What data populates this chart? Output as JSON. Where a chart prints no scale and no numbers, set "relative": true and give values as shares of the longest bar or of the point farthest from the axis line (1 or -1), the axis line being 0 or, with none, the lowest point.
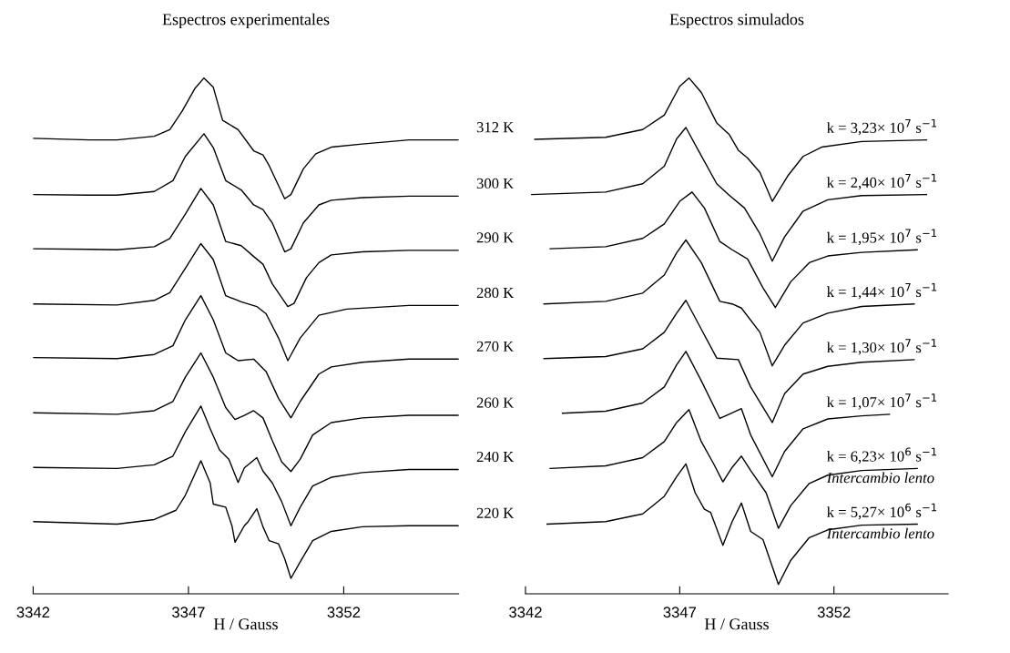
{
  "chart_data": [
    {
      "type": "line",
      "title": "Espectros experimentales",
      "xlabel": "H / Gauss",
      "relative": true,
      "xlim": [
        3342,
        3355.7
      ],
      "xticks": [
        3342,
        3347,
        3352
      ],
      "series": [
        {
          "name": "312 K",
          "color": "#000000",
          "x": [
            3342.0,
            3343.8,
            3344.7,
            3345.9,
            3346.4,
            3346.8,
            3347.2,
            3347.5,
            3347.8,
            3348.1,
            3348.6,
            3349.1,
            3349.4,
            3349.6,
            3350.1,
            3350.3,
            3350.7,
            3351.1,
            3351.6,
            3352.6,
            3354.1,
            3355.7
          ],
          "values": [
            0.883,
            0.88,
            0.88,
            0.887,
            0.9,
            0.936,
            0.979,
            1.0,
            0.982,
            0.918,
            0.9,
            0.859,
            0.851,
            0.83,
            0.766,
            0.774,
            0.824,
            0.853,
            0.866,
            0.872,
            0.88,
            0.88
          ]
        },
        {
          "name": "300 K",
          "color": "#000000",
          "x": [
            3342.0,
            3343.8,
            3344.7,
            3345.9,
            3346.5,
            3346.9,
            3347.5,
            3347.8,
            3348.2,
            3348.7,
            3349.1,
            3349.4,
            3349.7,
            3350.1,
            3350.3,
            3350.7,
            3351.2,
            3351.6,
            3352.6,
            3354.1,
            3355.7
          ],
          "values": [
            0.774,
            0.773,
            0.773,
            0.78,
            0.801,
            0.848,
            0.892,
            0.865,
            0.801,
            0.783,
            0.754,
            0.745,
            0.719,
            0.663,
            0.669,
            0.719,
            0.754,
            0.763,
            0.768,
            0.771,
            0.771
          ]
        },
        {
          "name": "290 K",
          "color": "#000000",
          "x": [
            3342.0,
            3343.8,
            3344.7,
            3345.9,
            3346.4,
            3346.9,
            3347.4,
            3347.8,
            3348.2,
            3348.7,
            3349.1,
            3349.4,
            3349.7,
            3350.2,
            3350.4,
            3350.8,
            3351.2,
            3351.6,
            3352.6,
            3354.1,
            3355.7
          ],
          "values": [
            0.669,
            0.668,
            0.667,
            0.673,
            0.689,
            0.736,
            0.786,
            0.754,
            0.683,
            0.675,
            0.654,
            0.639,
            0.601,
            0.557,
            0.563,
            0.613,
            0.642,
            0.657,
            0.663,
            0.666,
            0.666
          ]
        },
        {
          "name": "280 K",
          "color": "#000000",
          "x": [
            3342.0,
            3344.7,
            3345.9,
            3346.4,
            3346.9,
            3347.4,
            3347.8,
            3348.2,
            3348.7,
            3349.2,
            3349.5,
            3349.9,
            3350.2,
            3350.6,
            3351.2,
            3352.1,
            3354.1,
            3355.7
          ],
          "values": [
            0.562,
            0.56,
            0.569,
            0.584,
            0.631,
            0.679,
            0.648,
            0.578,
            0.566,
            0.557,
            0.543,
            0.496,
            0.452,
            0.496,
            0.54,
            0.552,
            0.559,
            0.559
          ]
        },
        {
          "name": "270 K",
          "color": "#000000",
          "x": [
            3342.0,
            3344.7,
            3345.9,
            3346.5,
            3346.9,
            3347.4,
            3347.8,
            3348.2,
            3348.6,
            3349.1,
            3349.5,
            3349.9,
            3350.3,
            3350.6,
            3351.2,
            3351.6,
            3352.6,
            3354.1,
            3355.7
          ],
          "values": [
            0.458,
            0.456,
            0.464,
            0.481,
            0.531,
            0.578,
            0.531,
            0.467,
            0.452,
            0.455,
            0.431,
            0.379,
            0.341,
            0.373,
            0.426,
            0.44,
            0.449,
            0.455,
            0.455
          ]
        },
        {
          "name": "260 K",
          "color": "#000000",
          "x": [
            3342.0,
            3344.7,
            3345.9,
            3346.5,
            3346.9,
            3347.4,
            3347.8,
            3348.2,
            3348.5,
            3348.8,
            3349.1,
            3349.4,
            3349.7,
            3350.0,
            3350.3,
            3350.6,
            3351.0,
            3351.6,
            3352.6,
            3354.1,
            3355.7
          ],
          "values": [
            0.351,
            0.348,
            0.355,
            0.373,
            0.42,
            0.467,
            0.42,
            0.361,
            0.338,
            0.346,
            0.355,
            0.341,
            0.297,
            0.256,
            0.237,
            0.261,
            0.308,
            0.332,
            0.341,
            0.346,
            0.346
          ]
        },
        {
          "name": "240 K",
          "color": "#000000",
          "x": [
            3342.0,
            3344.7,
            3345.9,
            3346.5,
            3346.9,
            3347.4,
            3347.7,
            3348.0,
            3348.3,
            3348.6,
            3348.8,
            3349.2,
            3349.4,
            3349.7,
            3350.0,
            3350.3,
            3350.6,
            3351.0,
            3351.6,
            3352.6,
            3354.1,
            3355.7
          ],
          "values": [
            0.245,
            0.243,
            0.25,
            0.267,
            0.314,
            0.364,
            0.32,
            0.279,
            0.261,
            0.216,
            0.244,
            0.264,
            0.238,
            0.215,
            0.179,
            0.132,
            0.168,
            0.209,
            0.226,
            0.235,
            0.241,
            0.241
          ]
        },
        {
          "name": "220 K",
          "color": "#000000",
          "x": [
            3342.0,
            3344.7,
            3345.9,
            3346.6,
            3346.9,
            3347.4,
            3347.7,
            3347.8,
            3348.2,
            3348.4,
            3348.5,
            3348.8,
            3348.9,
            3349.2,
            3349.4,
            3349.6,
            3349.9,
            3350.1,
            3350.3,
            3350.6,
            3351.0,
            3351.6,
            3352.6,
            3354.1,
            3355.7
          ],
          "values": [
            0.14,
            0.135,
            0.144,
            0.162,
            0.191,
            0.258,
            0.215,
            0.174,
            0.168,
            0.132,
            0.1,
            0.132,
            0.138,
            0.165,
            0.13,
            0.103,
            0.097,
            0.068,
            0.03,
            0.062,
            0.103,
            0.121,
            0.13,
            0.132,
            0.132
          ]
        }
      ]
    },
    {
      "type": "line",
      "title": "Espectros simulados",
      "xlabel": "H / Gauss",
      "relative": true,
      "xlim": [
        3342,
        3355.7
      ],
      "xticks": [
        3342,
        3347,
        3352
      ],
      "series": [
        {
          "name": "k = 3,23× 10$^{7}$ s$^{−1}$",
          "color": "#000000",
          "x": [
            3342.3,
            3344.6,
            3345.8,
            3346.5,
            3347.0,
            3347.3,
            3347.7,
            3348.2,
            3348.6,
            3348.9,
            3349.2,
            3349.6,
            3350.0,
            3350.5,
            3351.0,
            3351.6,
            3352.9,
            3355.0
          ],
          "values": [
            0.881,
            0.885,
            0.9,
            0.928,
            0.984,
            1.0,
            0.972,
            0.913,
            0.891,
            0.86,
            0.845,
            0.817,
            0.761,
            0.81,
            0.848,
            0.866,
            0.877,
            0.88
          ]
        },
        {
          "name": "k = 2,40× 10$^{7}$ s$^{−1}$",
          "color": "#000000",
          "x": [
            3342.2,
            3344.6,
            3345.8,
            3346.5,
            3346.9,
            3347.2,
            3347.6,
            3348.2,
            3348.6,
            3349.1,
            3349.6,
            3350.0,
            3350.4,
            3351.0,
            3351.8,
            3352.9,
            3355.0
          ],
          "values": [
            0.774,
            0.779,
            0.795,
            0.829,
            0.882,
            0.904,
            0.86,
            0.795,
            0.773,
            0.748,
            0.698,
            0.645,
            0.692,
            0.742,
            0.764,
            0.772,
            0.774
          ]
        },
        {
          "name": "k = 1,95× 10$^{7}$ s$^{−1}$",
          "color": "#000000",
          "x": [
            3342.8,
            3344.6,
            3345.8,
            3346.5,
            3347.0,
            3347.4,
            3347.8,
            3348.3,
            3348.7,
            3349.2,
            3349.7,
            3350.1,
            3350.6,
            3351.2,
            3351.8,
            3352.9,
            3354.7
          ],
          "values": [
            0.669,
            0.673,
            0.689,
            0.717,
            0.761,
            0.779,
            0.748,
            0.683,
            0.667,
            0.649,
            0.593,
            0.555,
            0.605,
            0.642,
            0.655,
            0.662,
            0.667
          ]
        },
        {
          "name": "k = 1,44× 10$^{7}$ s$^{−1}$",
          "color": "#000000",
          "x": [
            3342.6,
            3344.6,
            3345.8,
            3346.5,
            3346.9,
            3347.2,
            3347.7,
            3348.3,
            3348.7,
            3349.0,
            3349.6,
            3350.0,
            3350.4,
            3351.0,
            3351.8,
            3352.9,
            3354.6
          ],
          "values": [
            0.562,
            0.567,
            0.583,
            0.618,
            0.661,
            0.686,
            0.642,
            0.567,
            0.562,
            0.554,
            0.507,
            0.442,
            0.482,
            0.525,
            0.544,
            0.557,
            0.562
          ]
        },
        {
          "name": "k = 1,30× 10$^{7}$ s$^{−1}$",
          "color": "#000000",
          "x": [
            3342.6,
            3344.6,
            3345.8,
            3346.5,
            3346.9,
            3347.2,
            3347.7,
            3348.2,
            3348.9,
            3349.3,
            3350.0,
            3350.4,
            3351.0,
            3351.8,
            3352.9,
            3354.6
          ],
          "values": [
            0.456,
            0.46,
            0.475,
            0.507,
            0.544,
            0.569,
            0.513,
            0.457,
            0.454,
            0.401,
            0.332,
            0.388,
            0.426,
            0.441,
            0.449,
            0.454
          ]
        },
        {
          "name": "k = 1,07× 10$^{7}$ s$^{−1}$",
          "color": "#000000",
          "x": [
            3343.2,
            3344.6,
            3345.8,
            3346.5,
            3346.9,
            3347.2,
            3347.7,
            3348.3,
            3348.6,
            3349.0,
            3349.3,
            3350.0,
            3350.4,
            3351.0,
            3351.8,
            3352.9,
            3353.8
          ],
          "values": [
            0.35,
            0.354,
            0.37,
            0.401,
            0.444,
            0.47,
            0.413,
            0.34,
            0.348,
            0.359,
            0.308,
            0.227,
            0.276,
            0.32,
            0.339,
            0.345,
            0.348
          ]
        },
        {
          "name": "k = 6,23× 10$^{6}$ s$^{−1}$\nIntercambio lento",
          "color": "#000000",
          "x": [
            3342.8,
            3344.6,
            3345.8,
            3346.5,
            3346.9,
            3347.3,
            3347.7,
            3348.1,
            3348.4,
            3348.7,
            3349.0,
            3349.3,
            3349.8,
            3350.2,
            3350.6,
            3351.2,
            3351.8,
            3352.9,
            3354.7
          ],
          "values": [
            0.243,
            0.248,
            0.264,
            0.295,
            0.332,
            0.357,
            0.295,
            0.252,
            0.217,
            0.245,
            0.267,
            0.239,
            0.196,
            0.127,
            0.171,
            0.214,
            0.23,
            0.239,
            0.243
          ]
        },
        {
          "name": "k = 5,27× 10$^{6}$ s$^{−1}$\nIntercambio lento",
          "color": "#000000",
          "x": [
            3342.7,
            3344.6,
            3345.8,
            3346.5,
            3346.9,
            3347.2,
            3347.5,
            3347.8,
            3348.0,
            3348.4,
            3348.7,
            3349.0,
            3349.3,
            3349.7,
            3350.2,
            3350.6,
            3351.2,
            3351.8,
            3352.9,
            3354.7
          ],
          "values": [
            0.135,
            0.14,
            0.155,
            0.189,
            0.227,
            0.252,
            0.196,
            0.164,
            0.158,
            0.094,
            0.14,
            0.176,
            0.121,
            0.105,
            0.018,
            0.065,
            0.109,
            0.124,
            0.133,
            0.135
          ]
        }
      ]
    }
  ]
}
